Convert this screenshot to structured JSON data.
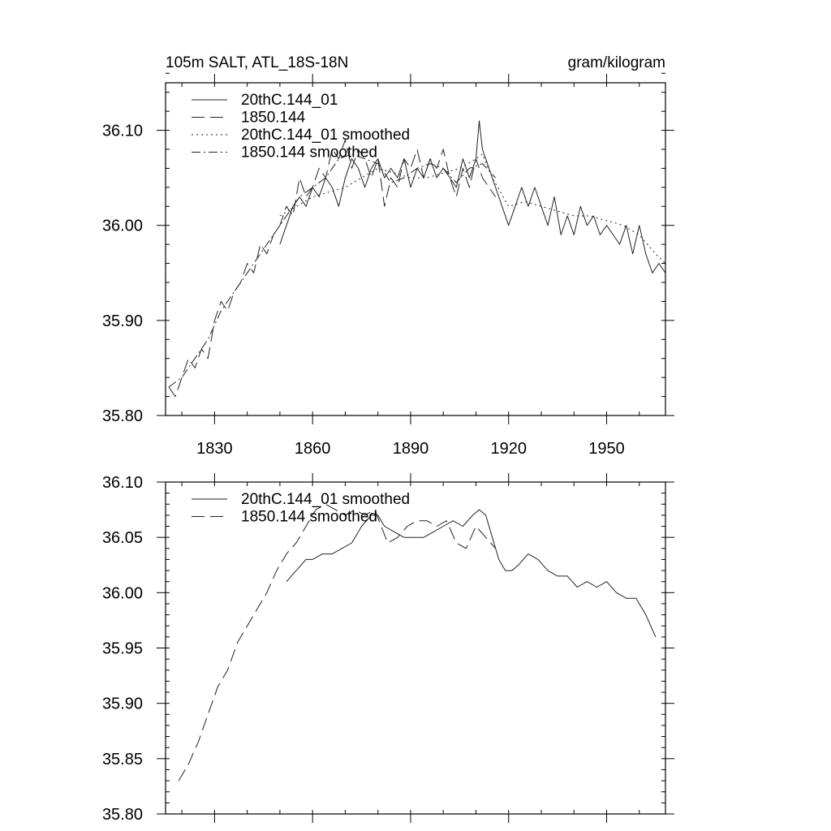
{
  "chart_data": [
    {
      "type": "line",
      "title": "105m SALT, ATL_18S-18N",
      "units": "gram/kilogram",
      "xlabel": "",
      "ylabel": "",
      "xlim": [
        1815,
        1968
      ],
      "ylim": [
        35.8,
        36.15
      ],
      "x_ticks": [
        1830,
        1860,
        1890,
        1920,
        1950
      ],
      "x_tick_labels": [
        "1830",
        "1860",
        "1890",
        "1920",
        "1950"
      ],
      "y_ticks": [
        35.8,
        35.9,
        36.0,
        36.1
      ],
      "y_tick_labels": [
        "35.80",
        "35.90",
        "36.00",
        "36.10"
      ],
      "grid": false,
      "legend": "top-left",
      "series": [
        {
          "name": "20thC.144_01",
          "dash": "solid",
          "x": [
            1850,
            1852,
            1854,
            1856,
            1858,
            1860,
            1862,
            1864,
            1866,
            1868,
            1870,
            1872,
            1874,
            1876,
            1878,
            1880,
            1882,
            1884,
            1886,
            1888,
            1890,
            1892,
            1894,
            1896,
            1898,
            1900,
            1902,
            1904,
            1906,
            1908,
            1909,
            1910,
            1911,
            1912,
            1914,
            1916,
            1918,
            1920,
            1922,
            1924,
            1926,
            1928,
            1930,
            1932,
            1934,
            1936,
            1938,
            1940,
            1942,
            1944,
            1946,
            1948,
            1950,
            1952,
            1954,
            1956,
            1958,
            1960,
            1962,
            1964,
            1966,
            1968
          ],
          "values": [
            35.98,
            36.0,
            36.02,
            36.03,
            36.02,
            36.04,
            36.03,
            36.05,
            36.04,
            36.02,
            36.05,
            36.07,
            36.06,
            36.04,
            36.06,
            36.07,
            36.05,
            36.06,
            36.05,
            36.07,
            36.04,
            36.06,
            36.05,
            36.07,
            36.05,
            36.06,
            36.05,
            36.04,
            36.07,
            36.05,
            36.06,
            36.07,
            36.11,
            36.08,
            36.06,
            36.04,
            36.02,
            36.0,
            36.02,
            36.04,
            36.02,
            36.04,
            36.02,
            36.0,
            36.03,
            35.99,
            36.01,
            35.99,
            36.02,
            36.0,
            36.01,
            35.99,
            36.0,
            35.99,
            35.98,
            36.0,
            35.97,
            36.0,
            35.97,
            35.95,
            35.96,
            35.95
          ]
        },
        {
          "name": "1850.144",
          "dash": "long-dash",
          "x": [
            1816,
            1818,
            1820,
            1822,
            1824,
            1826,
            1828,
            1830,
            1832,
            1834,
            1836,
            1838,
            1840,
            1842,
            1844,
            1846,
            1848,
            1850,
            1852,
            1854,
            1856,
            1858,
            1860,
            1862,
            1864,
            1866,
            1868,
            1870,
            1872,
            1874,
            1876,
            1878,
            1880,
            1882,
            1884,
            1886,
            1888,
            1890,
            1892,
            1894,
            1896,
            1898,
            1900,
            1902,
            1904,
            1906,
            1908,
            1910,
            1912,
            1914,
            1916
          ],
          "values": [
            35.83,
            35.82,
            35.84,
            35.86,
            35.85,
            35.87,
            35.86,
            35.9,
            35.92,
            35.91,
            35.93,
            35.94,
            35.96,
            35.95,
            35.98,
            35.97,
            35.99,
            36.0,
            36.02,
            36.01,
            36.05,
            36.03,
            36.04,
            36.06,
            36.05,
            36.08,
            36.07,
            36.09,
            36.06,
            36.08,
            36.07,
            36.05,
            36.07,
            36.02,
            36.05,
            36.04,
            36.07,
            36.06,
            36.08,
            36.05,
            36.07,
            36.06,
            36.08,
            36.05,
            36.03,
            36.06,
            36.04,
            36.07,
            36.05,
            36.04,
            36.03
          ]
        },
        {
          "name": "20thC.144_01 smoothed",
          "dash": "dot",
          "x": [
            1850,
            1855,
            1860,
            1865,
            1870,
            1875,
            1880,
            1885,
            1890,
            1895,
            1900,
            1905,
            1910,
            1912,
            1915,
            1920,
            1925,
            1930,
            1935,
            1940,
            1945,
            1950,
            1955,
            1960,
            1965,
            1968
          ],
          "values": [
            36.01,
            36.02,
            36.03,
            36.035,
            36.04,
            36.05,
            36.06,
            36.055,
            36.05,
            36.05,
            36.055,
            36.06,
            36.07,
            36.075,
            36.05,
            36.02,
            36.025,
            36.02,
            36.015,
            36.01,
            36.01,
            36.005,
            36.0,
            35.99,
            35.97,
            35.96
          ]
        },
        {
          "name": "1850.144 smoothed",
          "dash": "dash-dot",
          "x": [
            1816,
            1820,
            1824,
            1828,
            1832,
            1836,
            1840,
            1844,
            1848,
            1852,
            1856,
            1860,
            1864,
            1868,
            1872,
            1876,
            1880,
            1884,
            1888,
            1892,
            1896,
            1900,
            1904,
            1908,
            1912,
            1916
          ],
          "values": [
            35.83,
            35.84,
            35.86,
            35.88,
            35.91,
            35.93,
            35.95,
            35.97,
            35.99,
            36.01,
            36.03,
            36.04,
            36.05,
            36.07,
            36.075,
            36.07,
            36.065,
            36.045,
            36.05,
            36.06,
            36.065,
            36.06,
            36.045,
            36.06,
            36.065,
            36.05
          ]
        }
      ]
    },
    {
      "type": "line",
      "title": "",
      "xlabel": "",
      "ylabel": "",
      "xlim": [
        1815,
        1968
      ],
      "ylim": [
        35.8,
        36.1
      ],
      "x_ticks": [
        1830,
        1860,
        1890,
        1920,
        1950
      ],
      "x_tick_labels": [],
      "y_ticks": [
        35.8,
        35.85,
        35.9,
        35.95,
        36.0,
        36.05,
        36.1
      ],
      "y_tick_labels": [
        "35.80",
        "35.85",
        "35.90",
        "35.95",
        "36.00",
        "36.05",
        "36.10"
      ],
      "grid": false,
      "legend": "top-left",
      "series": [
        {
          "name": "20thC.144_01 smoothed",
          "dash": "solid",
          "x": [
            1852,
            1855,
            1858,
            1860,
            1863,
            1866,
            1869,
            1872,
            1875,
            1878,
            1880,
            1882,
            1885,
            1888,
            1891,
            1894,
            1897,
            1900,
            1903,
            1906,
            1909,
            1911,
            1913,
            1915,
            1917,
            1919,
            1921,
            1923,
            1926,
            1929,
            1932,
            1935,
            1938,
            1941,
            1944,
            1947,
            1950,
            1953,
            1956,
            1959,
            1962,
            1965
          ],
          "values": [
            36.01,
            36.02,
            36.03,
            36.03,
            36.035,
            36.035,
            36.04,
            36.045,
            36.06,
            36.07,
            36.07,
            36.06,
            36.055,
            36.05,
            36.05,
            36.05,
            36.055,
            36.06,
            36.065,
            36.06,
            36.07,
            36.075,
            36.07,
            36.05,
            36.03,
            36.02,
            36.02,
            36.025,
            36.035,
            36.03,
            36.02,
            36.015,
            36.015,
            36.005,
            36.01,
            36.005,
            36.01,
            36.0,
            35.995,
            35.995,
            35.98,
            35.96
          ]
        },
        {
          "name": "1850.144 smoothed",
          "dash": "long-dash",
          "x": [
            1819,
            1822,
            1825,
            1828,
            1831,
            1834,
            1837,
            1840,
            1843,
            1846,
            1849,
            1852,
            1855,
            1858,
            1861,
            1864,
            1867,
            1870,
            1873,
            1876,
            1879,
            1881,
            1883,
            1886,
            1889,
            1892,
            1895,
            1898,
            1901,
            1904,
            1907,
            1910,
            1913,
            1916
          ],
          "values": [
            35.83,
            35.845,
            35.865,
            35.89,
            35.915,
            35.93,
            35.955,
            35.97,
            35.985,
            36.0,
            36.02,
            36.035,
            36.045,
            36.06,
            36.075,
            36.08,
            36.075,
            36.07,
            36.075,
            36.07,
            36.075,
            36.06,
            36.045,
            36.05,
            36.06,
            36.065,
            36.065,
            36.06,
            36.065,
            36.045,
            36.04,
            36.06,
            36.05,
            36.04
          ]
        }
      ]
    }
  ]
}
